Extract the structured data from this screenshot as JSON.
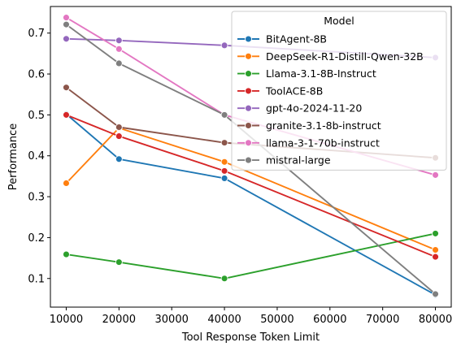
{
  "chart_data": {
    "type": "line",
    "xlabel": "Tool Response Token Limit",
    "ylabel": "Performance",
    "x": [
      10000,
      20000,
      40000,
      80000
    ],
    "xlim": [
      7000,
      83000
    ],
    "ylim": [
      0.03,
      0.765
    ],
    "xticks": [
      10000,
      20000,
      30000,
      40000,
      50000,
      60000,
      70000,
      80000
    ],
    "yticks": [
      0.1,
      0.2,
      0.3,
      0.4,
      0.5,
      0.6,
      0.7
    ],
    "grid": false,
    "legend": {
      "title": "Model",
      "placement": "top-right"
    },
    "series": [
      {
        "name": "BitAgent-8B",
        "color": "#1f77b4",
        "values": [
          0.502,
          0.392,
          0.345,
          0.06
        ]
      },
      {
        "name": "DeepSeek-R1-Distill-Qwen-32B",
        "color": "#ff7f0e",
        "values": [
          0.333,
          0.468,
          0.385,
          0.17
        ]
      },
      {
        "name": "Llama-3.1-8B-Instruct",
        "color": "#2ca02c",
        "values": [
          0.159,
          0.14,
          0.1,
          0.21
        ]
      },
      {
        "name": "ToolACE-8B",
        "color": "#d62728",
        "values": [
          0.5,
          0.448,
          0.363,
          0.153
        ]
      },
      {
        "name": "gpt-4o-2024-11-20",
        "color": "#9467bd",
        "values": [
          0.686,
          0.682,
          0.67,
          0.64
        ]
      },
      {
        "name": "granite-3.1-8b-instruct",
        "color": "#8c564b",
        "values": [
          0.567,
          0.47,
          0.432,
          0.395
        ]
      },
      {
        "name": "llama-3-1-70b-instruct",
        "color": "#e377c2",
        "values": [
          0.738,
          0.661,
          0.5,
          0.353
        ]
      },
      {
        "name": "mistral-large",
        "color": "#7f7f7f",
        "values": [
          0.721,
          0.626,
          0.5,
          0.062
        ]
      }
    ]
  }
}
